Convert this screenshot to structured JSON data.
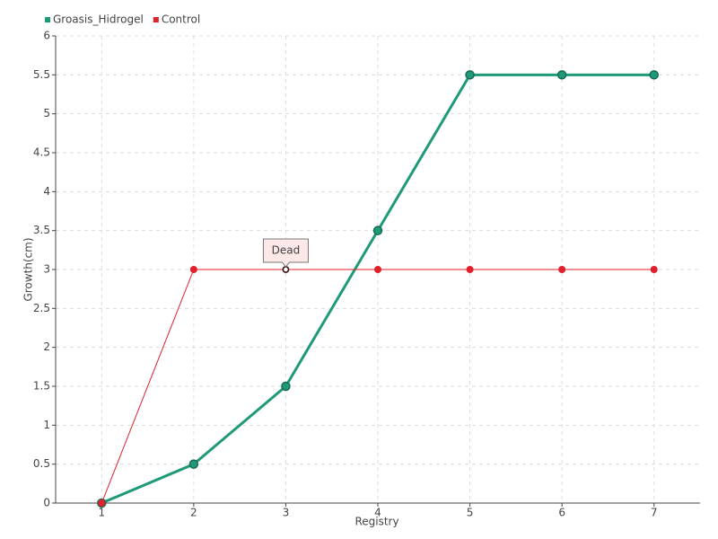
{
  "chart_data": {
    "type": "line",
    "x_label": "Registry",
    "y_label": "Growth(cm)",
    "categories": [
      "1",
      "2",
      "3",
      "4",
      "5",
      "6",
      "7"
    ],
    "series": [
      {
        "name": "Groasis_Hidrogel",
        "color": "#1f9a78",
        "values": [
          0,
          0.5,
          1.5,
          3.5,
          5.5,
          5.5,
          5.5
        ]
      },
      {
        "name": "Control",
        "color": "#e0202a",
        "values": [
          0,
          3,
          3,
          3,
          3,
          3,
          3
        ]
      }
    ],
    "ylim": [
      0,
      6
    ],
    "yticks": [
      0,
      0.5,
      1,
      1.5,
      2,
      2.5,
      3,
      3.5,
      4,
      4.5,
      5,
      5.5,
      6
    ],
    "grid": true,
    "legend": "top-left",
    "annotations": [
      {
        "text": "Dead",
        "x": "3",
        "y": 3
      }
    ]
  }
}
